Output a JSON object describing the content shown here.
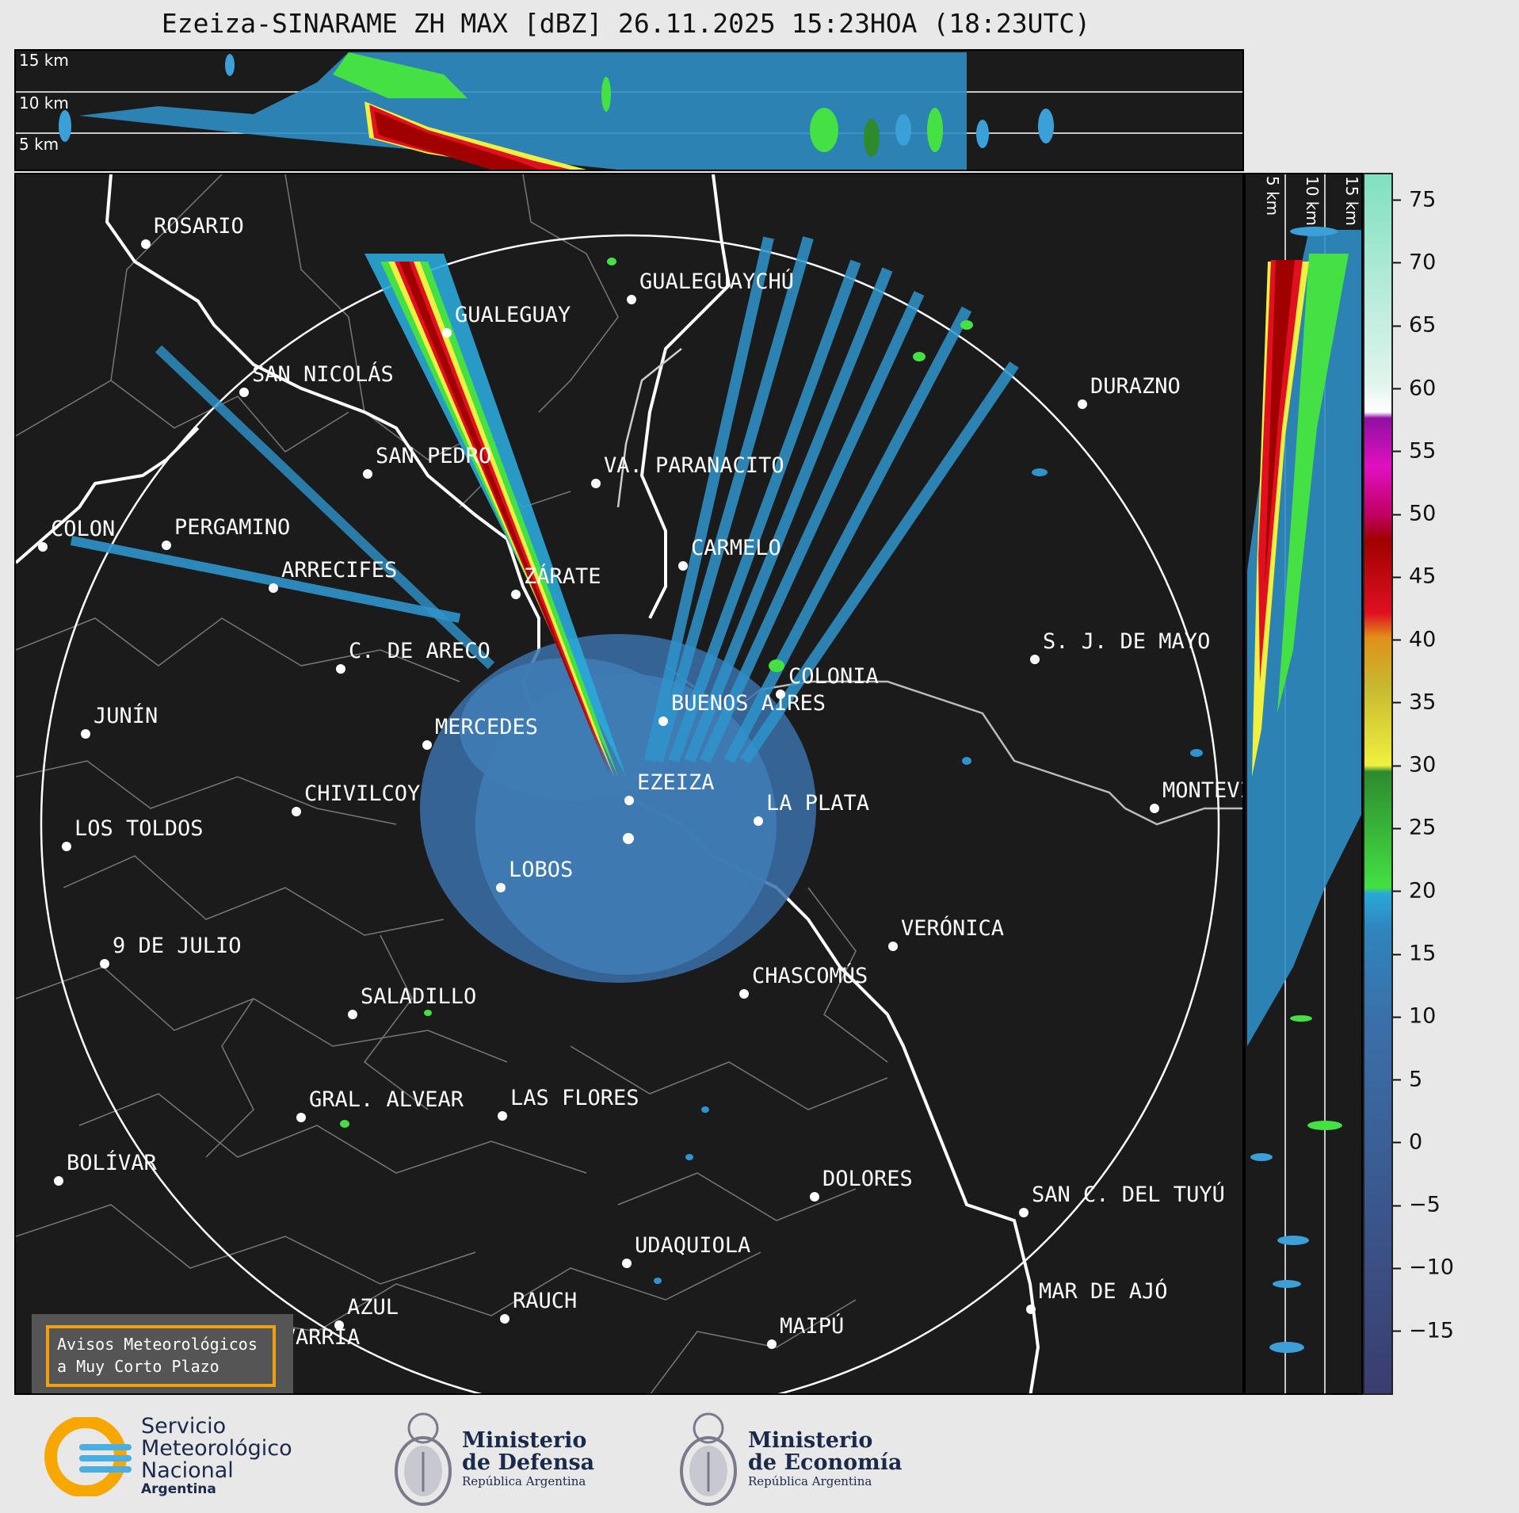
{
  "title": "Ezeiza-SINARAME ZH MAX [dBZ] 26.11.2025 15:23HOA (18:23UTC)",
  "top_panel": {
    "altitude_labels": [
      "15 km",
      "10 km",
      "5 km"
    ]
  },
  "right_panel": {
    "altitude_labels": [
      "5 km",
      "10 km",
      "15 km"
    ]
  },
  "colorbar": {
    "ticks": [
      "75",
      "70",
      "65",
      "60",
      "55",
      "50",
      "45",
      "40",
      "35",
      "30",
      "25",
      "20",
      "15",
      "10",
      "5",
      "0",
      "−5",
      "−10",
      "−15"
    ],
    "range": [
      -20,
      77
    ],
    "colors": {
      "low": "#3a3d6e",
      "blue": "#3b6ea8",
      "cyan": "#2aa8d8",
      "green": "#2d8a2d",
      "lime": "#44e044",
      "yellow": "#f0f040",
      "orange": "#e0901a",
      "red": "#e01020",
      "darkred": "#a00000",
      "magenta": "#e010c0",
      "white": "#ffffff",
      "mint": "#80e0c0"
    }
  },
  "cities": [
    {
      "name": "ROSARIO"
    },
    {
      "name": "GUALEGUAYCHÚ"
    },
    {
      "name": "GUALEGUAY"
    },
    {
      "name": "SAN NICOLÁS"
    },
    {
      "name": "DURAZNO"
    },
    {
      "name": "SAN PEDRO"
    },
    {
      "name": "VA. PARANACITO"
    },
    {
      "name": "COLON"
    },
    {
      "name": "PERGAMINO"
    },
    {
      "name": "CARMELO"
    },
    {
      "name": "ARRECIFES"
    },
    {
      "name": "ZÁRATE"
    },
    {
      "name": "C. DE ARECO"
    },
    {
      "name": "S. J. DE MAYO"
    },
    {
      "name": "COLONIA"
    },
    {
      "name": "JUNÍN"
    },
    {
      "name": "BUENOS AIRES"
    },
    {
      "name": "MERCEDES"
    },
    {
      "name": "MONTEVIDEO"
    },
    {
      "name": "EZEIZA"
    },
    {
      "name": "CHIVILCOY"
    },
    {
      "name": "LA PLATA"
    },
    {
      "name": "LOS TOLDOS"
    },
    {
      "name": "LOBOS"
    },
    {
      "name": "VERÓNICA"
    },
    {
      "name": "9 DE JULIO"
    },
    {
      "name": "CHASCOMÚS"
    },
    {
      "name": "SALADILLO"
    },
    {
      "name": "GRAL. ALVEAR"
    },
    {
      "name": "LAS FLORES"
    },
    {
      "name": "BOLÍVAR"
    },
    {
      "name": "DOLORES"
    },
    {
      "name": "SAN C. DEL TUYÚ"
    },
    {
      "name": "UDAQUIOLA"
    },
    {
      "name": "MAR DE AJÓ"
    },
    {
      "name": "AZUL"
    },
    {
      "name": "RAUCH"
    },
    {
      "name": "OLAVARRÍA"
    },
    {
      "name": "MAIPÚ"
    }
  ],
  "aviso": {
    "line1": "Avisos Meteorológicos",
    "line2": "a Muy Corto Plazo"
  },
  "logos": {
    "smn": {
      "line1": "Servicio",
      "line2": "Meteorológico",
      "line3": "Nacional",
      "line4": "Argentina"
    },
    "defensa": {
      "line1": "Ministerio",
      "line2": "de Defensa",
      "line3": "República Argentina"
    },
    "economia": {
      "line1": "Ministerio",
      "line2": "de Economía",
      "line3": "República Argentina"
    }
  }
}
